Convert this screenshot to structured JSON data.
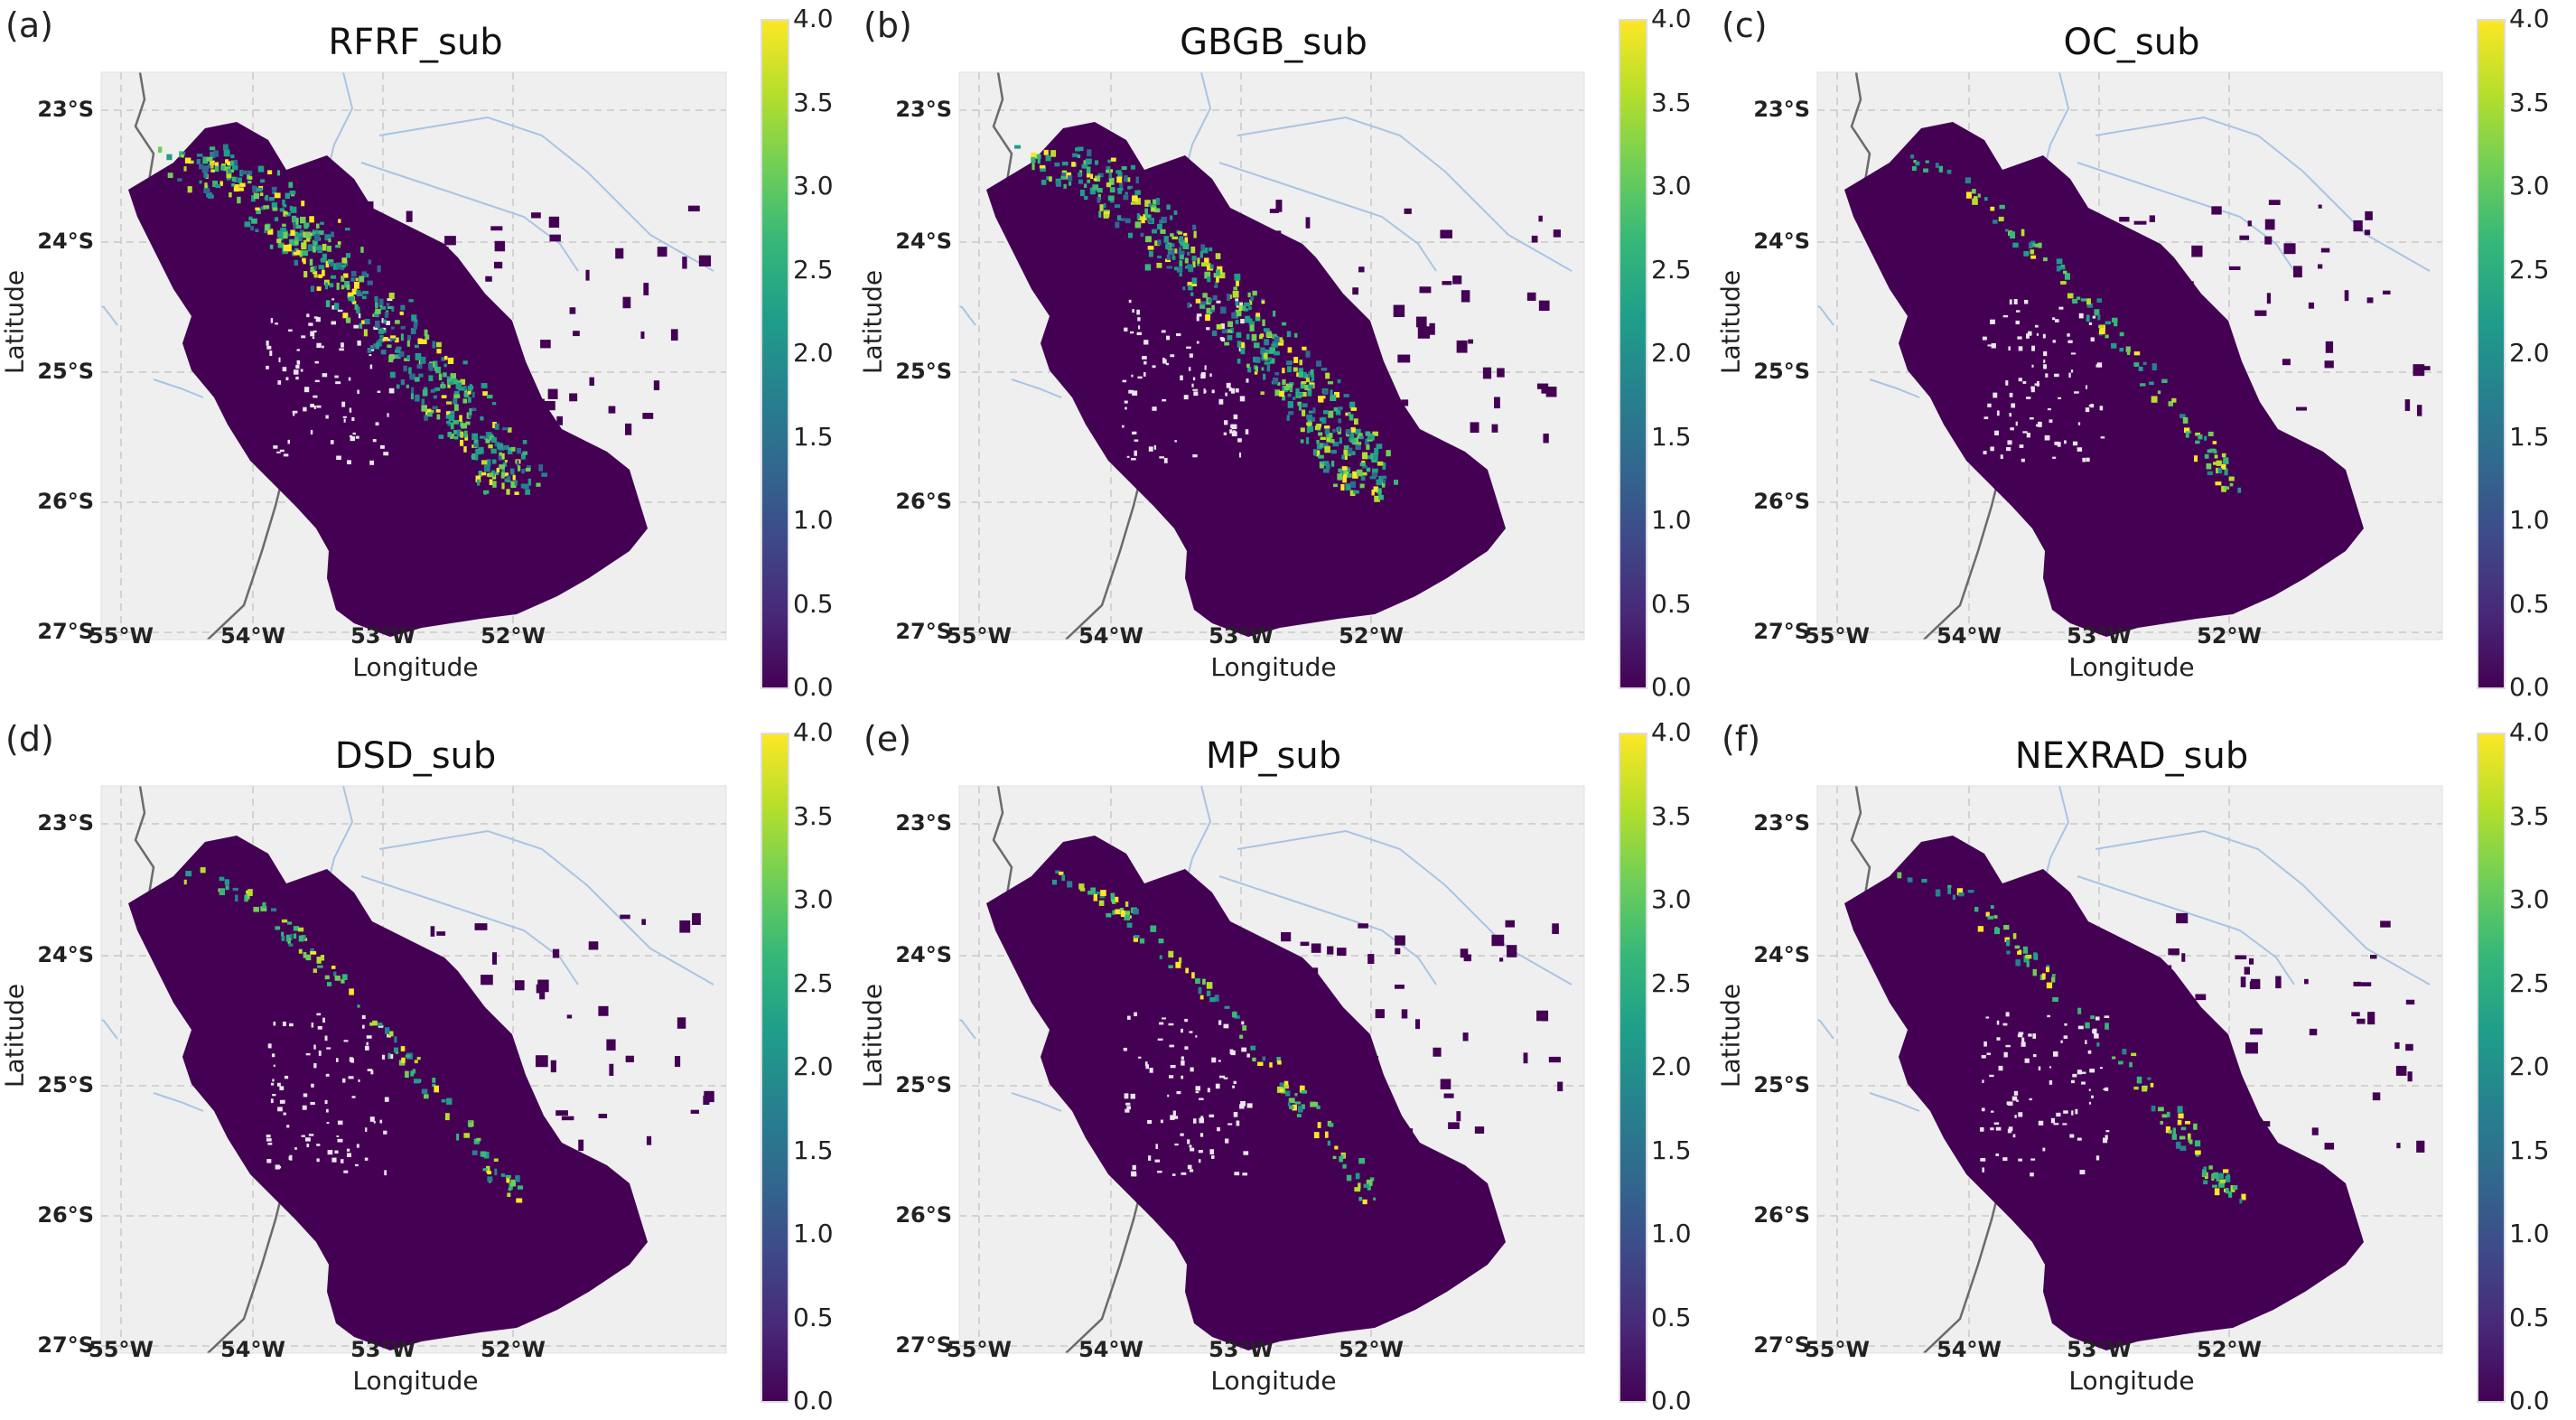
{
  "figure": {
    "colormap": "viridis",
    "map_background": "#efefef",
    "colorbar": {
      "min": 0.0,
      "max": 4.0,
      "ticks": [
        "0.0",
        "0.5",
        "1.0",
        "1.5",
        "2.0",
        "2.5",
        "3.0",
        "3.5",
        "4.0"
      ]
    },
    "latitude_ticks": [
      "23°S",
      "24°S",
      "25°S",
      "26°S",
      "27°S"
    ],
    "longitude_ticks": [
      "55°W",
      "54°W",
      "53°W",
      "52°W"
    ],
    "x_label": "Longitude",
    "y_label": "Latitude"
  },
  "panels": [
    {
      "letter": "(a)",
      "title": "RFRF_sub",
      "hotspot_level": "dense"
    },
    {
      "letter": "(b)",
      "title": "GBGB_sub",
      "hotspot_level": "dense"
    },
    {
      "letter": "(c)",
      "title": "OC_sub",
      "hotspot_level": "sparse"
    },
    {
      "letter": "(d)",
      "title": "DSD_sub",
      "hotspot_level": "sparse"
    },
    {
      "letter": "(e)",
      "title": "MP_sub",
      "hotspot_level": "sparse"
    },
    {
      "letter": "(f)",
      "title": "NEXRAD_sub",
      "hotspot_level": "sparse"
    }
  ]
}
